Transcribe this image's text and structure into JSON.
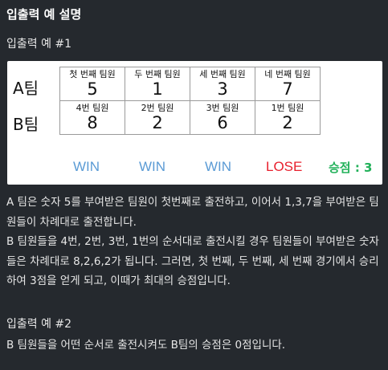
{
  "heading": "입출력 예 설명",
  "example1": {
    "title": "입출력 예 #1",
    "figure": {
      "team_a_label": "A팀",
      "team_b_label": "B팀",
      "team_a": [
        {
          "head": "첫 번째 팀원",
          "value": "5"
        },
        {
          "head": "두 번째 팀원",
          "value": "1"
        },
        {
          "head": "세 번째 팀원",
          "value": "3"
        },
        {
          "head": "네 번째 팀원",
          "value": "7"
        }
      ],
      "team_b": [
        {
          "head": "4번 팀원",
          "value": "8"
        },
        {
          "head": "2번 팀원",
          "value": "2"
        },
        {
          "head": "3번 팀원",
          "value": "6"
        },
        {
          "head": "1번 팀원",
          "value": "2"
        }
      ],
      "results": [
        "WIN",
        "WIN",
        "WIN",
        "LOSE"
      ],
      "score": "승점 : 3",
      "colors": {
        "win": "#5b9bd5",
        "lose": "#e81f2d",
        "score": "#22b15a"
      }
    },
    "paragraph1": "A 팀은 숫자 5를 부여받은 팀원이 첫번째로 출전하고, 이어서 1,3,7을 부여받은 팀원들이 차례대로 출전합니다.",
    "paragraph2": "B 팀원들을 4번, 2번, 3번, 1번의 순서대로 출전시킬 경우 팀원들이 부여받은 숫자들은 차례대로 8,2,6,2가 됩니다. 그러면, 첫 번째, 두 번째, 세 번째 경기에서 승리하여 3점을 얻게 되고, 이때가 최대의 승점입니다."
  },
  "example2": {
    "title": "입출력 예 #2",
    "paragraph": "B 팀원들을 어떤 순서로 출전시켜도 B팀의 승점은 0점입니다."
  }
}
